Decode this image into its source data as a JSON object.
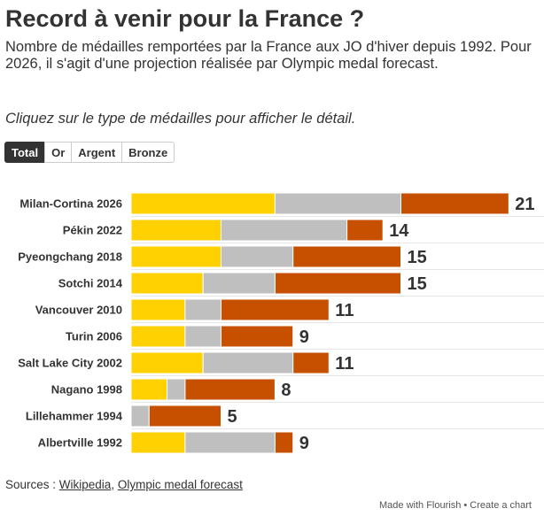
{
  "title": "Record à venir pour la France ?",
  "subtitle": "Nombre de médailles remportées par la France aux JO d'hiver depuis 1992. Pour 2026, il s'agit d'une projection réalisée par Olympic medal forecast.",
  "instruction": "Cliquez sur le type de médailles pour afficher le détail.",
  "tabs": [
    {
      "label": "Total",
      "active": true
    },
    {
      "label": "Or",
      "active": false
    },
    {
      "label": "Argent",
      "active": false
    },
    {
      "label": "Bronze",
      "active": false
    }
  ],
  "colors": {
    "gold": "#ffd100",
    "silver": "#bfbfbf",
    "bronze": "#c75000",
    "active_tab": "#333333"
  },
  "chart_data": {
    "type": "bar",
    "orientation": "horizontal",
    "stacked": true,
    "categories": [
      "Milan-Cortina 2026",
      "Pékin 2022",
      "Pyeongchang 2018",
      "Sotchi 2014",
      "Vancouver 2010",
      "Turin 2006",
      "Salt Lake City 2002",
      "Nagano 1998",
      "Lillehammer 1994",
      "Albertville 1992"
    ],
    "series": [
      {
        "color": "#ffd100",
        "values": [
          8,
          5,
          5,
          4,
          3,
          3,
          4,
          2,
          0,
          3
        ]
      },
      {
        "color": "#bfbfbf",
        "values": [
          7,
          7,
          4,
          4,
          2,
          2,
          5,
          1,
          1,
          5
        ]
      },
      {
        "color": "#c75000",
        "values": [
          6,
          2,
          6,
          7,
          6,
          4,
          2,
          5,
          4,
          1
        ]
      }
    ],
    "totals": [
      21,
      14,
      15,
      15,
      11,
      9,
      11,
      8,
      5,
      9
    ],
    "xlim": [
      0,
      21
    ],
    "grid": true,
    "legend": "none"
  },
  "sources": {
    "prefix": "Sources : ",
    "link1": "Wikipedia",
    "separator": ", ",
    "link2": "Olympic medal forecast"
  },
  "credit": "Made with Flourish • Create a chart"
}
